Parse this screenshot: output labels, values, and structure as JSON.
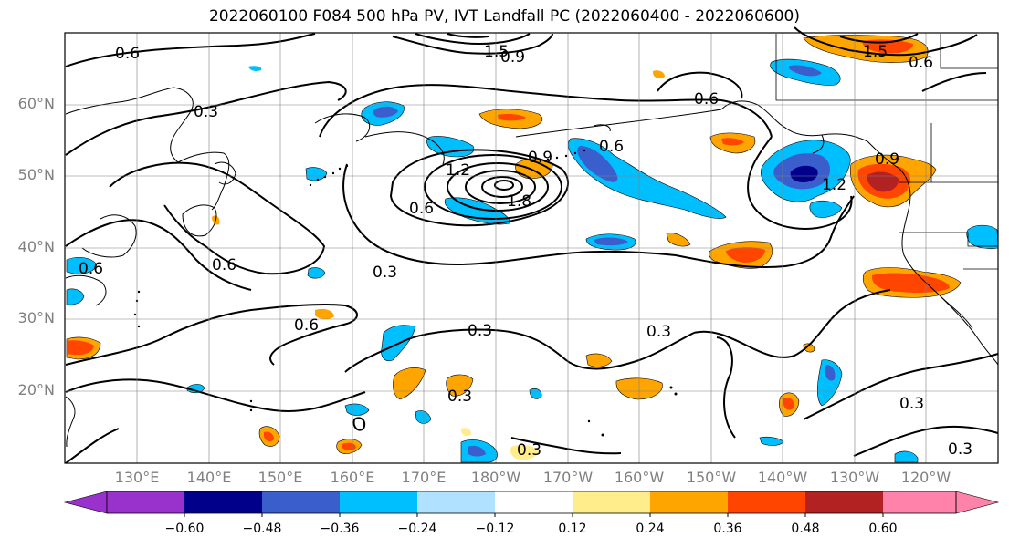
{
  "title": "2022060100 F084 500 hPa PV, IVT Landfall PC (2022060400 - 2022060600)",
  "map": {
    "lat_labels": [
      "60°N",
      "50°N",
      "40°N",
      "30°N",
      "20°N"
    ],
    "lon_labels": [
      "130°E",
      "140°E",
      "150°E",
      "160°E",
      "170°E",
      "180°W",
      "170°W",
      "160°W",
      "150°W",
      "140°W",
      "130°W",
      "120°W"
    ],
    "contour_labels": [
      "0.6",
      "0.3",
      "0.6",
      "0.6",
      "1.2",
      "1.5",
      "1.8",
      "0.9",
      "0.3",
      "0.6",
      "0.6",
      "0.3",
      "0.3",
      "0.3",
      "0.3",
      "0.6",
      "0.9",
      "1.2",
      "1.5",
      "0.6",
      "0.9",
      "0.3",
      "0.3",
      "0.6"
    ]
  },
  "colorbar": {
    "ticks": [
      "−0.60",
      "−0.48",
      "−0.36",
      "−0.24",
      "−0.12",
      "0.12",
      "0.24",
      "0.36",
      "0.48",
      "0.60"
    ],
    "colors": [
      "#9932cc",
      "#00008b",
      "#3a5fcd",
      "#00bfff",
      "#b0e2ff",
      "#ffffff",
      "#ffec8b",
      "#ffa500",
      "#ff4500",
      "#b22222",
      "#ff82ab"
    ]
  }
}
